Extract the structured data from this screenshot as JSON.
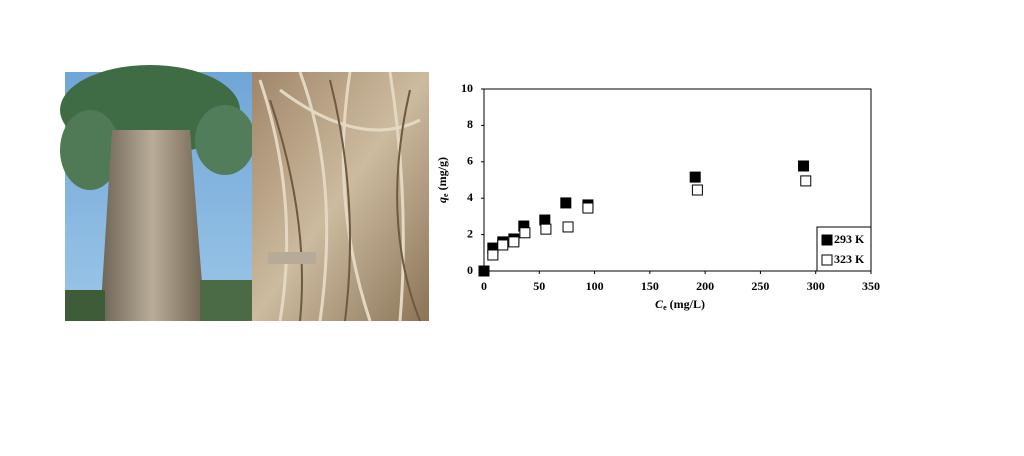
{
  "chart_data": {
    "type": "scatter",
    "x_label": {
      "symbol": "C",
      "subscript": "e",
      "unit": "(mg/L)"
    },
    "y_label": {
      "symbol": "q",
      "subscript": "e",
      "unit": "(mg/g)"
    },
    "xlim": [
      0,
      350
    ],
    "xticks": [
      0,
      50,
      100,
      150,
      200,
      250,
      300,
      350
    ],
    "ylim": [
      0,
      10
    ],
    "yticks": [
      0,
      2,
      4,
      6,
      8,
      10
    ],
    "grid": false,
    "legend": "lower-right",
    "series": [
      {
        "name": "293 K",
        "color": "#000000",
        "filled": true,
        "x": [
          0,
          8,
          17,
          27,
          36,
          55,
          74,
          94,
          191,
          289
        ],
        "values": [
          0,
          1.26,
          1.6,
          1.76,
          2.47,
          2.8,
          3.74,
          3.63,
          5.16,
          5.77
        ]
      },
      {
        "name": "323 K",
        "color": "#000000",
        "filled": false,
        "x": [
          8,
          17,
          27,
          37,
          56,
          76,
          94,
          193,
          291
        ],
        "values": [
          0.88,
          1.43,
          1.6,
          2.1,
          2.3,
          2.42,
          3.46,
          4.45,
          4.95
        ]
      }
    ]
  }
}
